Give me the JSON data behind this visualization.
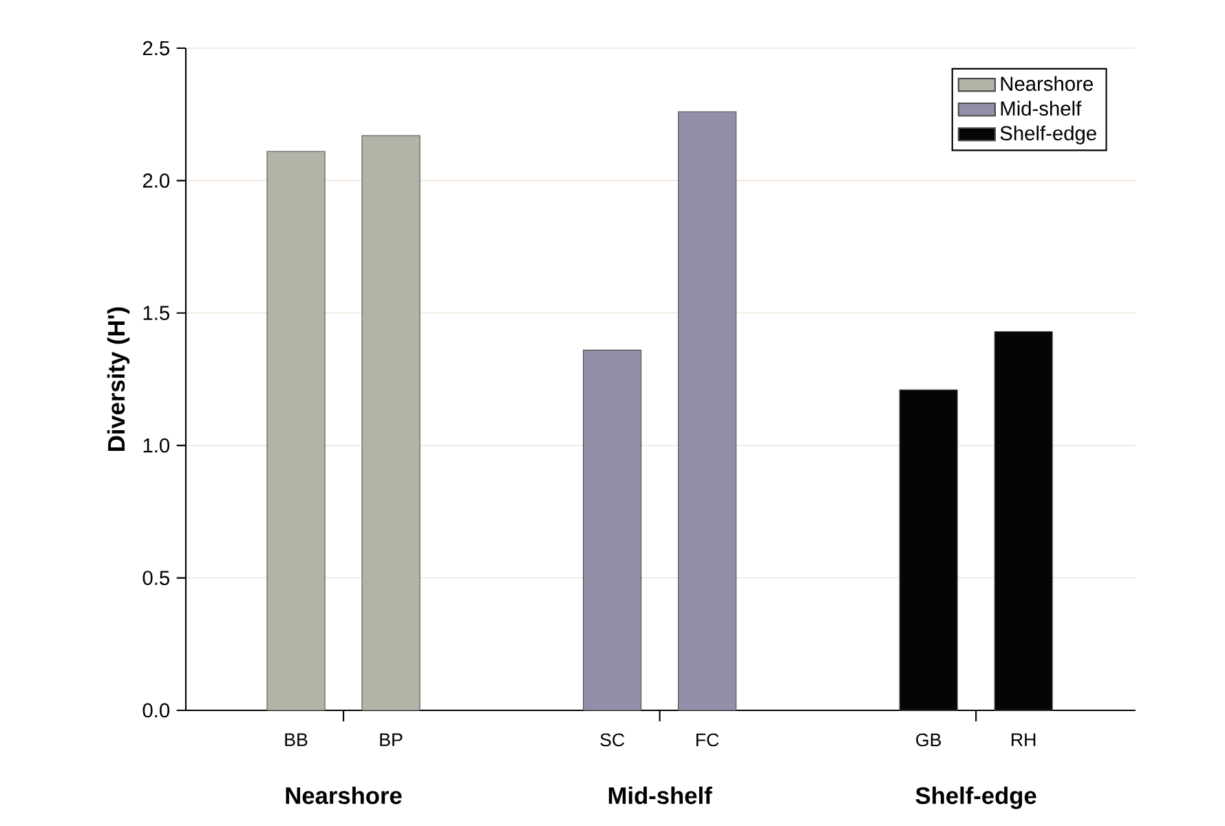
{
  "chart_data": {
    "type": "bar",
    "ylabel": "Diversity (H')",
    "categories": [
      "BB",
      "BP",
      "SC",
      "FC",
      "GB",
      "RH"
    ],
    "series": [
      {
        "name": "Nearshore",
        "color": "#b3b4a8",
        "values": [
          2.11,
          2.17,
          null,
          null,
          null,
          null
        ]
      },
      {
        "name": "Mid-shelf",
        "color": "#9190a8",
        "values": [
          null,
          null,
          1.36,
          2.26,
          null,
          null
        ]
      },
      {
        "name": "Shelf-edge",
        "color": "#050505",
        "values": [
          null,
          null,
          null,
          null,
          1.21,
          1.43
        ]
      }
    ],
    "annotations": [
      "Nearshore",
      "Mid-shelf",
      "Shelf-edge"
    ],
    "ylim": [
      0,
      2.5
    ],
    "yticks": [
      {
        "value": 0,
        "label": "0.0"
      },
      {
        "value": 0.5,
        "label": "0.5"
      },
      {
        "value": 1,
        "label": "1.0"
      },
      {
        "value": 1.5,
        "label": "1.5"
      },
      {
        "value": 2,
        "label": "2.0"
      },
      {
        "value": 2.5,
        "label": "2.5"
      }
    ],
    "grid": "y",
    "legend": "top right"
  }
}
